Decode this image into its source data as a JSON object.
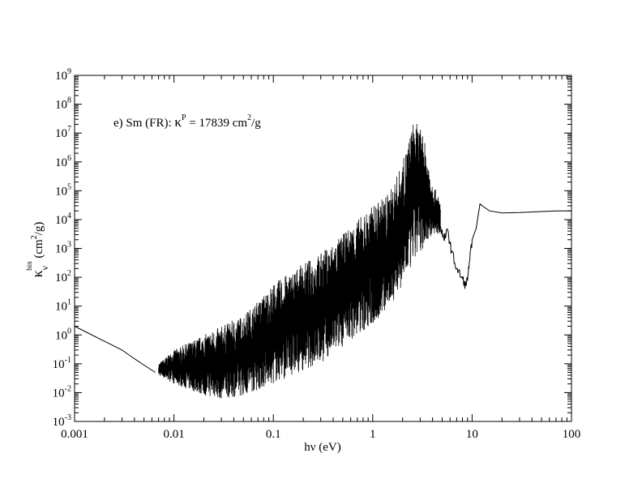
{
  "chart_data": {
    "type": "line",
    "annotation": {
      "prefix": "e) Sm (FR): ",
      "kappa": "κ",
      "kappa_sup": "P",
      "middle": " = 17839 cm",
      "unit_sup": "2",
      "suffix": "/g"
    },
    "xlabel": "hν (eV)",
    "ylabel": {
      "kappa": "κ",
      "sub": "ν",
      "sup": "bin",
      "unit_open": " (cm",
      "unit_sup": "2",
      "unit_close": "/g)"
    },
    "x_scale": "log",
    "y_scale": "log",
    "xlim": [
      0.001,
      100
    ],
    "ylim": [
      0.001,
      1000000000
    ],
    "x_ticks": [
      {
        "value": 0.001,
        "label": "0.001"
      },
      {
        "value": 0.01,
        "label": "0.01"
      },
      {
        "value": 0.1,
        "label": "0.1"
      },
      {
        "value": 1,
        "label": "1"
      },
      {
        "value": 10,
        "label": "10"
      },
      {
        "value": 100,
        "label": "100"
      }
    ],
    "y_ticks": [
      {
        "value": 0.001,
        "base": "10",
        "exp": "-3"
      },
      {
        "value": 0.01,
        "base": "10",
        "exp": "-2"
      },
      {
        "value": 0.1,
        "base": "10",
        "exp": "-1"
      },
      {
        "value": 1,
        "base": "10",
        "exp": "0"
      },
      {
        "value": 10,
        "base": "10",
        "exp": "1"
      },
      {
        "value": 100,
        "base": "10",
        "exp": "2"
      },
      {
        "value": 1000,
        "base": "10",
        "exp": "3"
      },
      {
        "value": 10000,
        "base": "10",
        "exp": "4"
      },
      {
        "value": 100000,
        "base": "10",
        "exp": "5"
      },
      {
        "value": 1000000,
        "base": "10",
        "exp": "6"
      },
      {
        "value": 10000000,
        "base": "10",
        "exp": "7"
      },
      {
        "value": 100000000,
        "base": "10",
        "exp": "8"
      },
      {
        "value": 1000000000,
        "base": "10",
        "exp": "9"
      }
    ],
    "grid": false,
    "legend": "none",
    "series": [
      {
        "color": "#000000",
        "envelope": [
          {
            "x": 0.007,
            "low": 0.04,
            "high": 0.1
          },
          {
            "x": 0.01,
            "low": 0.02,
            "high": 0.3
          },
          {
            "x": 0.02,
            "low": 0.008,
            "high": 1.0
          },
          {
            "x": 0.03,
            "low": 0.006,
            "high": 2.0
          },
          {
            "x": 0.05,
            "low": 0.008,
            "high": 5.0
          },
          {
            "x": 0.07,
            "low": 0.012,
            "high": 15.0
          },
          {
            "x": 0.1,
            "low": 0.02,
            "high": 60.0
          },
          {
            "x": 0.2,
            "low": 0.06,
            "high": 300.0
          },
          {
            "x": 0.3,
            "low": 0.1,
            "high": 700.0
          },
          {
            "x": 0.5,
            "low": 0.4,
            "high": 3000.0
          },
          {
            "x": 0.7,
            "low": 1.0,
            "high": 10000.0
          },
          {
            "x": 1.0,
            "low": 2.0,
            "high": 30000.0
          },
          {
            "x": 1.5,
            "low": 10.0,
            "high": 100000.0
          },
          {
            "x": 2.0,
            "low": 50.0,
            "high": 1000000.0
          },
          {
            "x": 2.6,
            "low": 300.0,
            "high": 30000000.0
          },
          {
            "x": 3.2,
            "low": 1000.0,
            "high": 10000000.0
          },
          {
            "x": 4.0,
            "low": 3000.0,
            "high": 200000.0
          },
          {
            "x": 4.8,
            "low": 3000.0,
            "high": 40000.0
          }
        ],
        "points": [
          {
            "x": 0.001,
            "y": 2.0
          },
          {
            "x": 0.002,
            "y": 0.6
          },
          {
            "x": 0.003,
            "y": 0.3
          },
          {
            "x": 0.004,
            "y": 0.15
          },
          {
            "x": 0.005,
            "y": 0.09
          },
          {
            "x": 0.0065,
            "y": 0.05
          },
          {
            "x": 4.8,
            "y": 6000
          },
          {
            "x": 5.2,
            "y": 2000
          },
          {
            "x": 5.7,
            "y": 4000
          },
          {
            "x": 6.2,
            "y": 800
          },
          {
            "x": 7.0,
            "y": 200
          },
          {
            "x": 7.8,
            "y": 100
          },
          {
            "x": 8.7,
            "y": 50
          },
          {
            "x": 9.3,
            "y": 200
          },
          {
            "x": 10.0,
            "y": 2000
          },
          {
            "x": 11.0,
            "y": 5000
          },
          {
            "x": 12.0,
            "y": 35000
          },
          {
            "x": 13.0,
            "y": 28000
          },
          {
            "x": 15.0,
            "y": 20000
          },
          {
            "x": 20.0,
            "y": 17000
          },
          {
            "x": 30.0,
            "y": 17500
          },
          {
            "x": 50.0,
            "y": 19000
          },
          {
            "x": 70.0,
            "y": 20000
          },
          {
            "x": 100.0,
            "y": 20000
          }
        ]
      }
    ]
  }
}
